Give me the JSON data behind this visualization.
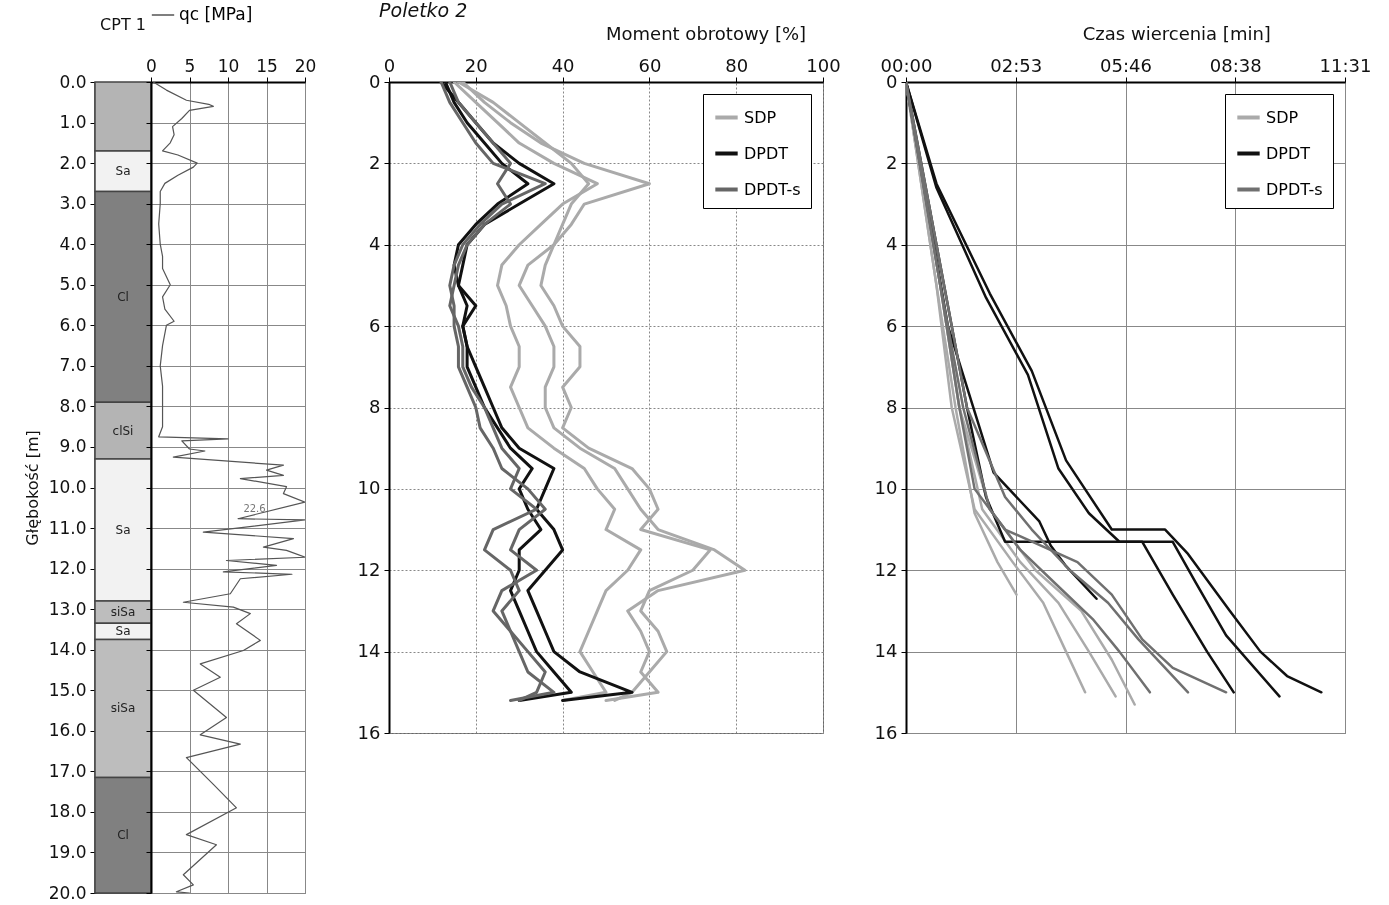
{
  "chart_data": [
    {
      "type": "bar",
      "title": "CPT 1",
      "ylabel": "Głębokość [m]",
      "categories": [
        null
      ],
      "stacked": true,
      "tick_labels": "y",
      "ylim": [
        20,
        0
      ],
      "yticks": [
        {
          "value": 0,
          "label": "0.0"
        },
        {
          "value": 1,
          "label": "1.0"
        },
        {
          "value": 2,
          "label": "2.0"
        },
        {
          "value": 3,
          "label": "3.0"
        },
        {
          "value": 4,
          "label": "4.0"
        },
        {
          "value": 5,
          "label": "5.0"
        },
        {
          "value": 6,
          "label": "6.0"
        },
        {
          "value": 7,
          "label": "7.0"
        },
        {
          "value": 8,
          "label": "8.0"
        },
        {
          "value": 9,
          "label": "9.0"
        },
        {
          "value": 10,
          "label": "10.0"
        },
        {
          "value": 11,
          "label": "11.0"
        },
        {
          "value": 12,
          "label": "12.0"
        },
        {
          "value": 13,
          "label": "13.0"
        },
        {
          "value": 14,
          "label": "14.0"
        },
        {
          "value": 15,
          "label": "15.0"
        },
        {
          "value": 16,
          "label": "16.0"
        },
        {
          "value": 17,
          "label": "17.0"
        },
        {
          "value": 18,
          "label": "18.0"
        },
        {
          "value": 19,
          "label": "19.0"
        },
        {
          "value": 20,
          "label": "20.0"
        }
      ],
      "series": [
        {
          "color": "#b4b4b4",
          "values": [
            1.7
          ]
        },
        {
          "name": "Sa",
          "color": "#f2f2f2",
          "values": [
            1.0
          ]
        },
        {
          "name": "Cl",
          "color": "#808080",
          "values": [
            5.2
          ]
        },
        {
          "name": "clSi",
          "color": "#b4b4b4",
          "values": [
            1.4
          ]
        },
        {
          "name": "Sa",
          "color": "#f2f2f2",
          "values": [
            3.5
          ]
        },
        {
          "name": "siSa",
          "color": "#bdbdbd",
          "values": [
            0.55
          ]
        },
        {
          "name": "Sa",
          "color": "#f2f2f2",
          "values": [
            0.4
          ]
        },
        {
          "name": "siSa",
          "color": "#bdbdbd",
          "values": [
            3.4
          ]
        },
        {
          "name": "Cl",
          "color": "#808080",
          "values": [
            2.85
          ]
        }
      ]
    },
    {
      "type": "line",
      "xlim": [
        0,
        20
      ],
      "xticks": [
        0,
        5,
        10,
        15,
        20
      ],
      "ylim": [
        20,
        0
      ],
      "yticks": [
        0,
        1,
        2,
        3,
        4,
        5,
        6,
        7,
        8,
        9,
        10,
        11,
        12,
        13,
        14,
        15,
        16,
        17,
        18,
        19,
        20
      ],
      "tick_labels": "x",
      "grid": true,
      "legend": "top",
      "annotations": [
        "22.6"
      ],
      "series": [
        {
          "name": "qc [MPa]",
          "color": "#555555",
          "x": [
            0.3,
            2.0,
            4.6,
            7.5,
            8.1,
            5,
            4,
            2.8,
            3.0,
            2.5,
            1.5,
            3.5,
            6.0,
            5.5,
            3.5,
            1.8,
            1.2,
            1.2,
            1.0,
            1.2,
            1.5,
            1.5,
            2.5,
            1.5,
            1.8,
            3.0,
            2.0,
            1.5,
            1.2,
            1.5,
            1.5,
            1.5,
            1.0,
            10.0,
            4,
            5,
            7,
            2.9,
            17.2,
            15,
            17.2,
            11.6,
            17.6,
            17.2,
            20,
            11.3,
            20,
            6.8,
            18.5,
            14.6,
            17.6,
            20,
            9.8,
            16.3,
            9.4,
            18.3,
            11.6,
            10.3,
            4.2,
            10.7,
            12.9,
            11.1,
            14.2,
            12,
            6.4,
            9.0,
            5.5,
            9.8,
            6.4,
            11.6,
            4.6,
            8.1,
            11.1,
            4.6,
            8.5,
            4.2,
            5.5,
            3.3,
            5.0
          ],
          "values": [
            0,
            0.2,
            0.45,
            0.55,
            0.6,
            0.7,
            0.9,
            1.1,
            1.3,
            1.5,
            1.7,
            1.8,
            2.0,
            2.1,
            2.3,
            2.5,
            2.7,
            3.0,
            3.5,
            4.0,
            4.3,
            4.6,
            5.0,
            5.3,
            5.6,
            5.9,
            6.0,
            6.5,
            7.0,
            7.5,
            8.0,
            8.5,
            8.75,
            8.8,
            8.85,
            9.05,
            9.1,
            9.25,
            9.45,
            9.57,
            9.7,
            9.78,
            9.98,
            10.15,
            10.36,
            10.77,
            10.8,
            11.1,
            11.26,
            11.47,
            11.55,
            11.72,
            11.8,
            11.92,
            12.08,
            12.14,
            12.25,
            12.62,
            12.83,
            12.95,
            13.11,
            13.36,
            13.77,
            14.02,
            14.35,
            14.68,
            15.0,
            15.67,
            16.1,
            16.33,
            16.66,
            17.32,
            17.9,
            18.56,
            18.81,
            19.55,
            19.8,
            19.97,
            20
          ]
        }
      ]
    },
    {
      "type": "line",
      "title": "Poletko 2",
      "xlabel": "Moment obrotowy [%]",
      "xlim": [
        0,
        100
      ],
      "xticks": [
        0,
        20,
        40,
        60,
        80,
        100
      ],
      "ylim": [
        16,
        0
      ],
      "yticks": [
        0,
        2,
        4,
        6,
        8,
        10,
        12,
        14,
        16
      ],
      "grid": true,
      "legend": "top right",
      "series": [
        {
          "name": "SDP",
          "color": "#aaaaaa",
          "x": [
            17,
            22,
            28,
            35,
            45,
            60,
            45,
            42,
            38,
            32,
            30,
            33,
            36,
            38,
            38,
            36,
            36,
            38,
            44,
            52,
            55,
            58,
            62,
            75,
            82,
            62,
            55,
            58,
            60,
            58,
            62,
            50
          ],
          "values": [
            0,
            0.5,
            1,
            1.5,
            2,
            2.5,
            3,
            3.5,
            4,
            4.5,
            5,
            5.5,
            6,
            6.5,
            7,
            7.5,
            8,
            8.5,
            9,
            9.5,
            10,
            10.5,
            11,
            11.5,
            12,
            12.5,
            13,
            13.5,
            14,
            14.5,
            15,
            15.2
          ]
        },
        {
          "color": "#aaaaaa",
          "x": [
            15,
            20,
            25,
            30,
            38,
            48,
            40,
            35,
            30,
            26,
            25,
            27,
            28,
            30,
            30,
            28,
            30,
            32,
            38,
            45,
            48,
            52,
            50,
            58,
            55,
            50,
            48,
            46,
            44,
            47,
            50,
            40
          ],
          "values": [
            0,
            0.5,
            1,
            1.5,
            2,
            2.5,
            3,
            3.5,
            4,
            4.5,
            5,
            5.5,
            6,
            6.5,
            7,
            7.5,
            8,
            8.5,
            9,
            9.5,
            10,
            10.5,
            11,
            11.5,
            12,
            12.5,
            13,
            13.5,
            14,
            14.5,
            15,
            15.2
          ]
        },
        {
          "color": "#aaaaaa",
          "x": [
            16,
            24,
            30,
            36,
            42,
            46,
            42,
            40,
            38,
            36,
            35,
            38,
            40,
            44,
            44,
            40,
            42,
            40,
            46,
            56,
            60,
            62,
            58,
            74,
            70,
            60,
            58,
            62,
            64,
            60,
            56,
            52
          ],
          "values": [
            0,
            0.5,
            1,
            1.5,
            2,
            2.5,
            3,
            3.5,
            4,
            4.5,
            5,
            5.5,
            6,
            6.5,
            7,
            7.5,
            8,
            8.5,
            9,
            9.5,
            10,
            10.5,
            11,
            11.5,
            12,
            12.5,
            13,
            13.5,
            14,
            14.5,
            15,
            15.2
          ]
        },
        {
          "name": "DPDT",
          "color": "#111111",
          "x": [
            12,
            16,
            20,
            24,
            30,
            38,
            30,
            22,
            18,
            17,
            16,
            18,
            17,
            18,
            20,
            22,
            24,
            26,
            30,
            38,
            36,
            34,
            38,
            40,
            36,
            32,
            34,
            36,
            38,
            44,
            56,
            40
          ],
          "values": [
            0,
            0.5,
            1,
            1.5,
            2,
            2.5,
            3,
            3.5,
            4,
            4.5,
            5,
            5.5,
            6,
            6.5,
            7,
            7.5,
            8,
            8.5,
            9,
            9.5,
            10,
            10.5,
            11,
            11.5,
            12,
            12.5,
            13,
            13.5,
            14,
            14.5,
            15,
            15.2
          ]
        },
        {
          "color": "#111111",
          "x": [
            13,
            15,
            18,
            22,
            26,
            32,
            25,
            20,
            16,
            15,
            16,
            20,
            17,
            18,
            18,
            20,
            22,
            25,
            28,
            33,
            30,
            32,
            35,
            30,
            30,
            28,
            30,
            32,
            34,
            38,
            42,
            30
          ],
          "values": [
            0,
            0.5,
            1,
            1.5,
            2,
            2.5,
            3,
            3.5,
            4,
            4.5,
            5,
            5.5,
            6,
            6.5,
            7,
            7.5,
            8,
            8.5,
            9,
            9.5,
            10,
            10.5,
            11,
            11.5,
            12,
            12.5,
            13,
            13.5,
            14,
            14.5,
            15,
            15.2
          ]
        },
        {
          "name": "DPDT-s",
          "color": "#666666",
          "x": [
            12,
            14,
            17,
            20,
            24,
            36,
            26,
            21,
            17,
            15,
            14,
            15,
            15,
            16,
            16,
            18,
            20,
            21,
            24,
            26,
            32,
            36,
            30,
            28,
            34,
            26,
            24,
            28,
            30,
            32,
            38,
            28
          ],
          "values": [
            0,
            0.5,
            1,
            1.5,
            2,
            2.5,
            3,
            3.5,
            4,
            4.5,
            5,
            5.5,
            6,
            6.5,
            7,
            7.5,
            8,
            8.5,
            9,
            9.5,
            10,
            10.5,
            11,
            11.5,
            12,
            12.5,
            13,
            13.5,
            14,
            14.5,
            15,
            15.2
          ]
        },
        {
          "color": "#666666",
          "x": [
            14,
            16,
            20,
            24,
            28,
            25,
            28,
            22,
            18,
            16,
            15,
            14,
            16,
            17,
            17,
            19,
            22,
            24,
            26,
            30,
            28,
            34,
            24,
            22,
            28,
            30,
            26,
            28,
            32,
            36,
            34,
            30
          ],
          "values": [
            0,
            0.5,
            1,
            1.5,
            2,
            2.5,
            3,
            3.5,
            4,
            4.5,
            5,
            5.5,
            6,
            6.5,
            7,
            7.5,
            8,
            8.5,
            9,
            9.5,
            10,
            10.5,
            11,
            11.5,
            12,
            12.5,
            13,
            13.5,
            14,
            14.5,
            15,
            15.2
          ]
        }
      ]
    },
    {
      "type": "line",
      "xlabel": "Czas wiercenia [min]",
      "xlim": [
        0,
        11.52
      ],
      "xticks": [
        {
          "value": 0,
          "label": "00:00"
        },
        {
          "value": 2.88,
          "label": "02:53"
        },
        {
          "value": 5.76,
          "label": "05:46"
        },
        {
          "value": 8.64,
          "label": "08:38"
        },
        {
          "value": 11.52,
          "label": "11:31"
        }
      ],
      "ylim": [
        16,
        0
      ],
      "yticks": [
        0,
        2,
        4,
        6,
        8,
        10,
        12,
        14,
        16
      ],
      "grid": true,
      "legend": "top right",
      "series": [
        {
          "name": "SDP",
          "color": "#aaaaaa",
          "x": [
            0,
            0.8,
            1.2,
            1.8,
            2.8,
            3.6,
            4.2,
            4.7
          ],
          "values": [
            0,
            5,
            8,
            10.5,
            11.8,
            12.8,
            14,
            15.0
          ]
        },
        {
          "color": "#aaaaaa",
          "x": [
            0,
            0.9,
            1.4,
            2.0,
            3.0,
            4.0,
            4.8,
            5.5
          ],
          "values": [
            0,
            5,
            8,
            10.5,
            11.8,
            12.8,
            14,
            15.1
          ]
        },
        {
          "color": "#aaaaaa",
          "x": [
            0,
            0.9,
            1.4,
            2.2,
            3.4,
            4.6,
            5.4,
            6.0
          ],
          "values": [
            0,
            5,
            8,
            10.5,
            12,
            13,
            14.2,
            15.3
          ]
        },
        {
          "color": "#aaaaaa",
          "x": [
            0,
            0.8,
            1.3,
            1.8,
            2.4,
            2.9
          ],
          "values": [
            0,
            5,
            8,
            10.6,
            11.8,
            12.6
          ]
        },
        {
          "name": "DPDT",
          "color": "#111111",
          "x": [
            0,
            0.8,
            2.2,
            3.3,
            4.2,
            5.4,
            6.8,
            7.4,
            8.5,
            9.3,
            10.0,
            10.9
          ],
          "values": [
            0,
            2.5,
            5.2,
            7.1,
            9.3,
            11.0,
            11.0,
            11.6,
            13.0,
            14.0,
            14.6,
            15.0
          ]
        },
        {
          "color": "#111111",
          "x": [
            0,
            0.8,
            2.1,
            3.2,
            4.0,
            4.8,
            5.6,
            7.0,
            7.6,
            8.4,
            9.8
          ],
          "values": [
            0,
            2.6,
            5.3,
            7.2,
            9.5,
            10.6,
            11.3,
            11.3,
            12.3,
            13.6,
            15.1
          ]
        },
        {
          "color": "#111111",
          "x": [
            0,
            1.0,
            1.6,
            2.1,
            2.6,
            6.2,
            7.0,
            7.9,
            8.6
          ],
          "values": [
            0,
            5,
            8,
            10.2,
            11.3,
            11.3,
            12.6,
            14.0,
            15.0
          ]
        },
        {
          "color": "#111111",
          "x": [
            0,
            1.1,
            2.3,
            3.5,
            3.8,
            4.2,
            5.0
          ],
          "values": [
            0,
            6,
            9.6,
            10.8,
            11.4,
            11.9,
            12.7
          ]
        },
        {
          "name": "DPDT-s",
          "color": "#707070",
          "x": [
            0,
            0.9,
            1.4,
            1.8,
            2.6,
            4.5,
            5.4,
            6.2,
            7.0,
            8.4
          ],
          "values": [
            0,
            5,
            8,
            10,
            11.0,
            11.8,
            12.6,
            13.7,
            14.4,
            15.0
          ]
        },
        {
          "color": "#707070",
          "x": [
            0,
            1.0,
            1.6,
            2.6,
            3.3,
            4.3,
            5.3,
            6.1,
            7.4
          ],
          "values": [
            0,
            5,
            8,
            10.2,
            11,
            12.0,
            12.8,
            13.7,
            15.0
          ]
        },
        {
          "color": "#707070",
          "x": [
            0,
            0.9,
            1.5,
            2.2,
            3.0,
            4.0,
            4.9,
            5.6,
            6.4
          ],
          "values": [
            0,
            5,
            8,
            10.5,
            11.5,
            12.4,
            13.2,
            14.0,
            15.0
          ]
        }
      ]
    }
  ]
}
